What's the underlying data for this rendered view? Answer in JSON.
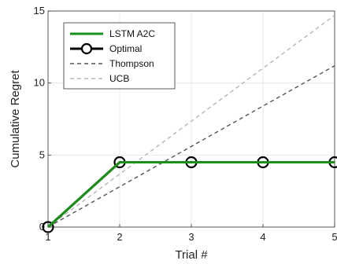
{
  "chart_data": {
    "type": "line",
    "xlabel": "Trial #",
    "ylabel": "Cumulative Regret",
    "xlim": [
      1,
      5
    ],
    "ylim": [
      0,
      15
    ],
    "xticks": [
      1,
      2,
      3,
      4,
      5
    ],
    "yticks": [
      0,
      5,
      10,
      15
    ],
    "grid": true,
    "legend_position": "top-left",
    "series": [
      {
        "name": "LSTM A2C",
        "x": [
          1,
          2,
          3,
          4,
          5
        ],
        "y": [
          0,
          4.5,
          4.5,
          4.5,
          4.5
        ],
        "color": "#1a8f1a",
        "style": "solid",
        "marker": "none"
      },
      {
        "name": "Optimal",
        "x": [
          1,
          2,
          3,
          4,
          5
        ],
        "y": [
          0,
          4.5,
          4.5,
          4.5,
          4.5
        ],
        "color": "#000000",
        "style": "solid",
        "marker": "circle"
      },
      {
        "name": "Thompson",
        "x": [
          1,
          5
        ],
        "y": [
          0,
          11.2
        ],
        "color": "#555555",
        "style": "dashed",
        "marker": "none"
      },
      {
        "name": "UCB",
        "x": [
          1,
          5
        ],
        "y": [
          0,
          14.7
        ],
        "color": "#b5b5b5",
        "style": "dashed",
        "marker": "none"
      }
    ]
  }
}
